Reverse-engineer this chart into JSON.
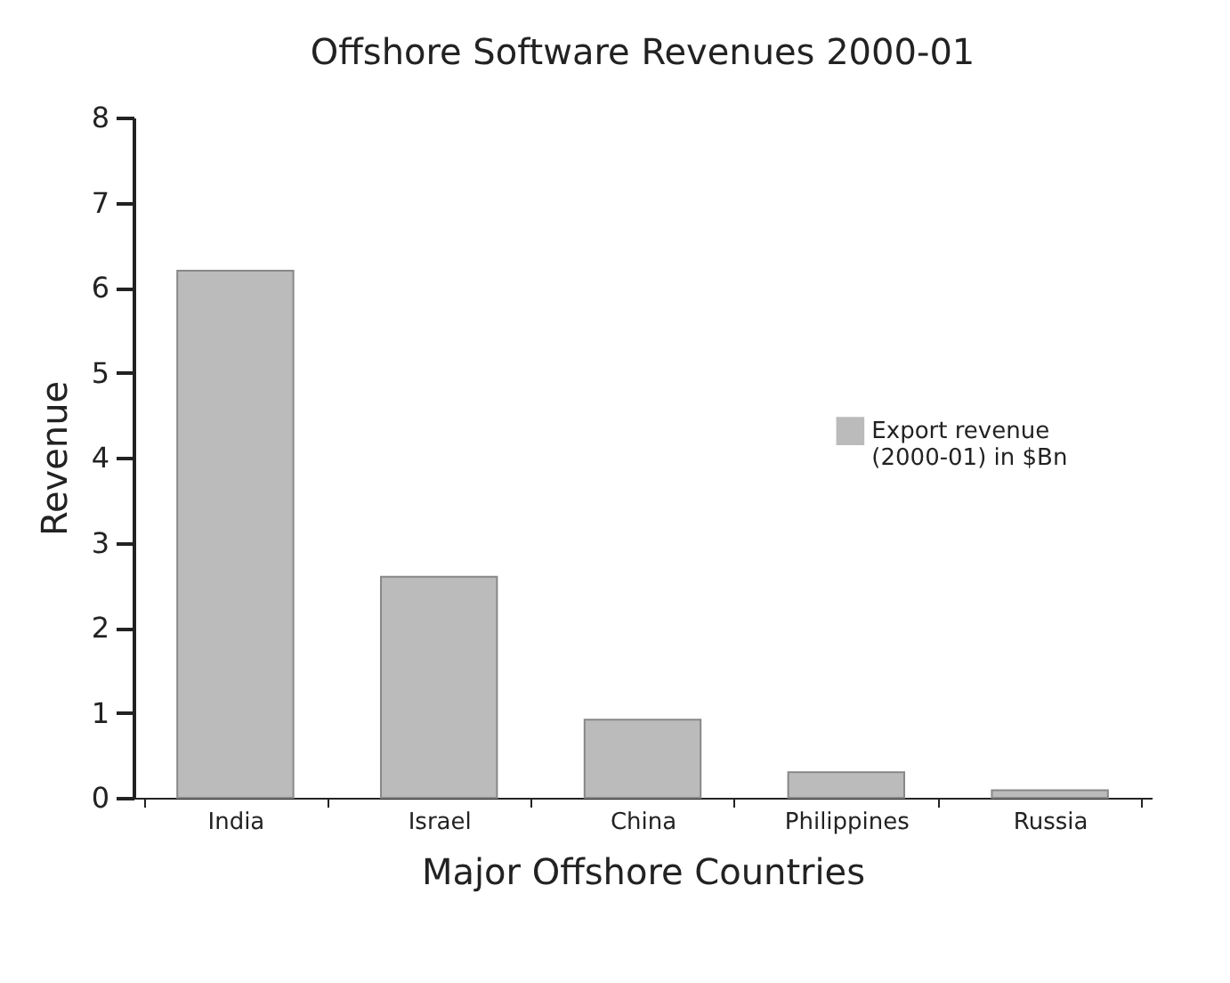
{
  "chart_data": {
    "type": "bar",
    "title": "Offshore Software Revenues 2000-01",
    "xlabel": "Major Offshore Countries",
    "ylabel": "Revenue",
    "categories": [
      "India",
      "Israel",
      "China",
      "Philippines",
      "Russia"
    ],
    "series": [
      {
        "name": "Export revenue\n(2000-01) in $Bn",
        "color": "#bbbbbb",
        "values": [
          6.2,
          2.6,
          0.92,
          0.3,
          0.09
        ]
      }
    ],
    "ylim": [
      0,
      8
    ],
    "yticks": [
      0,
      1,
      2,
      3,
      4,
      5,
      6,
      7,
      8
    ],
    "grid": false,
    "legend": "right"
  }
}
